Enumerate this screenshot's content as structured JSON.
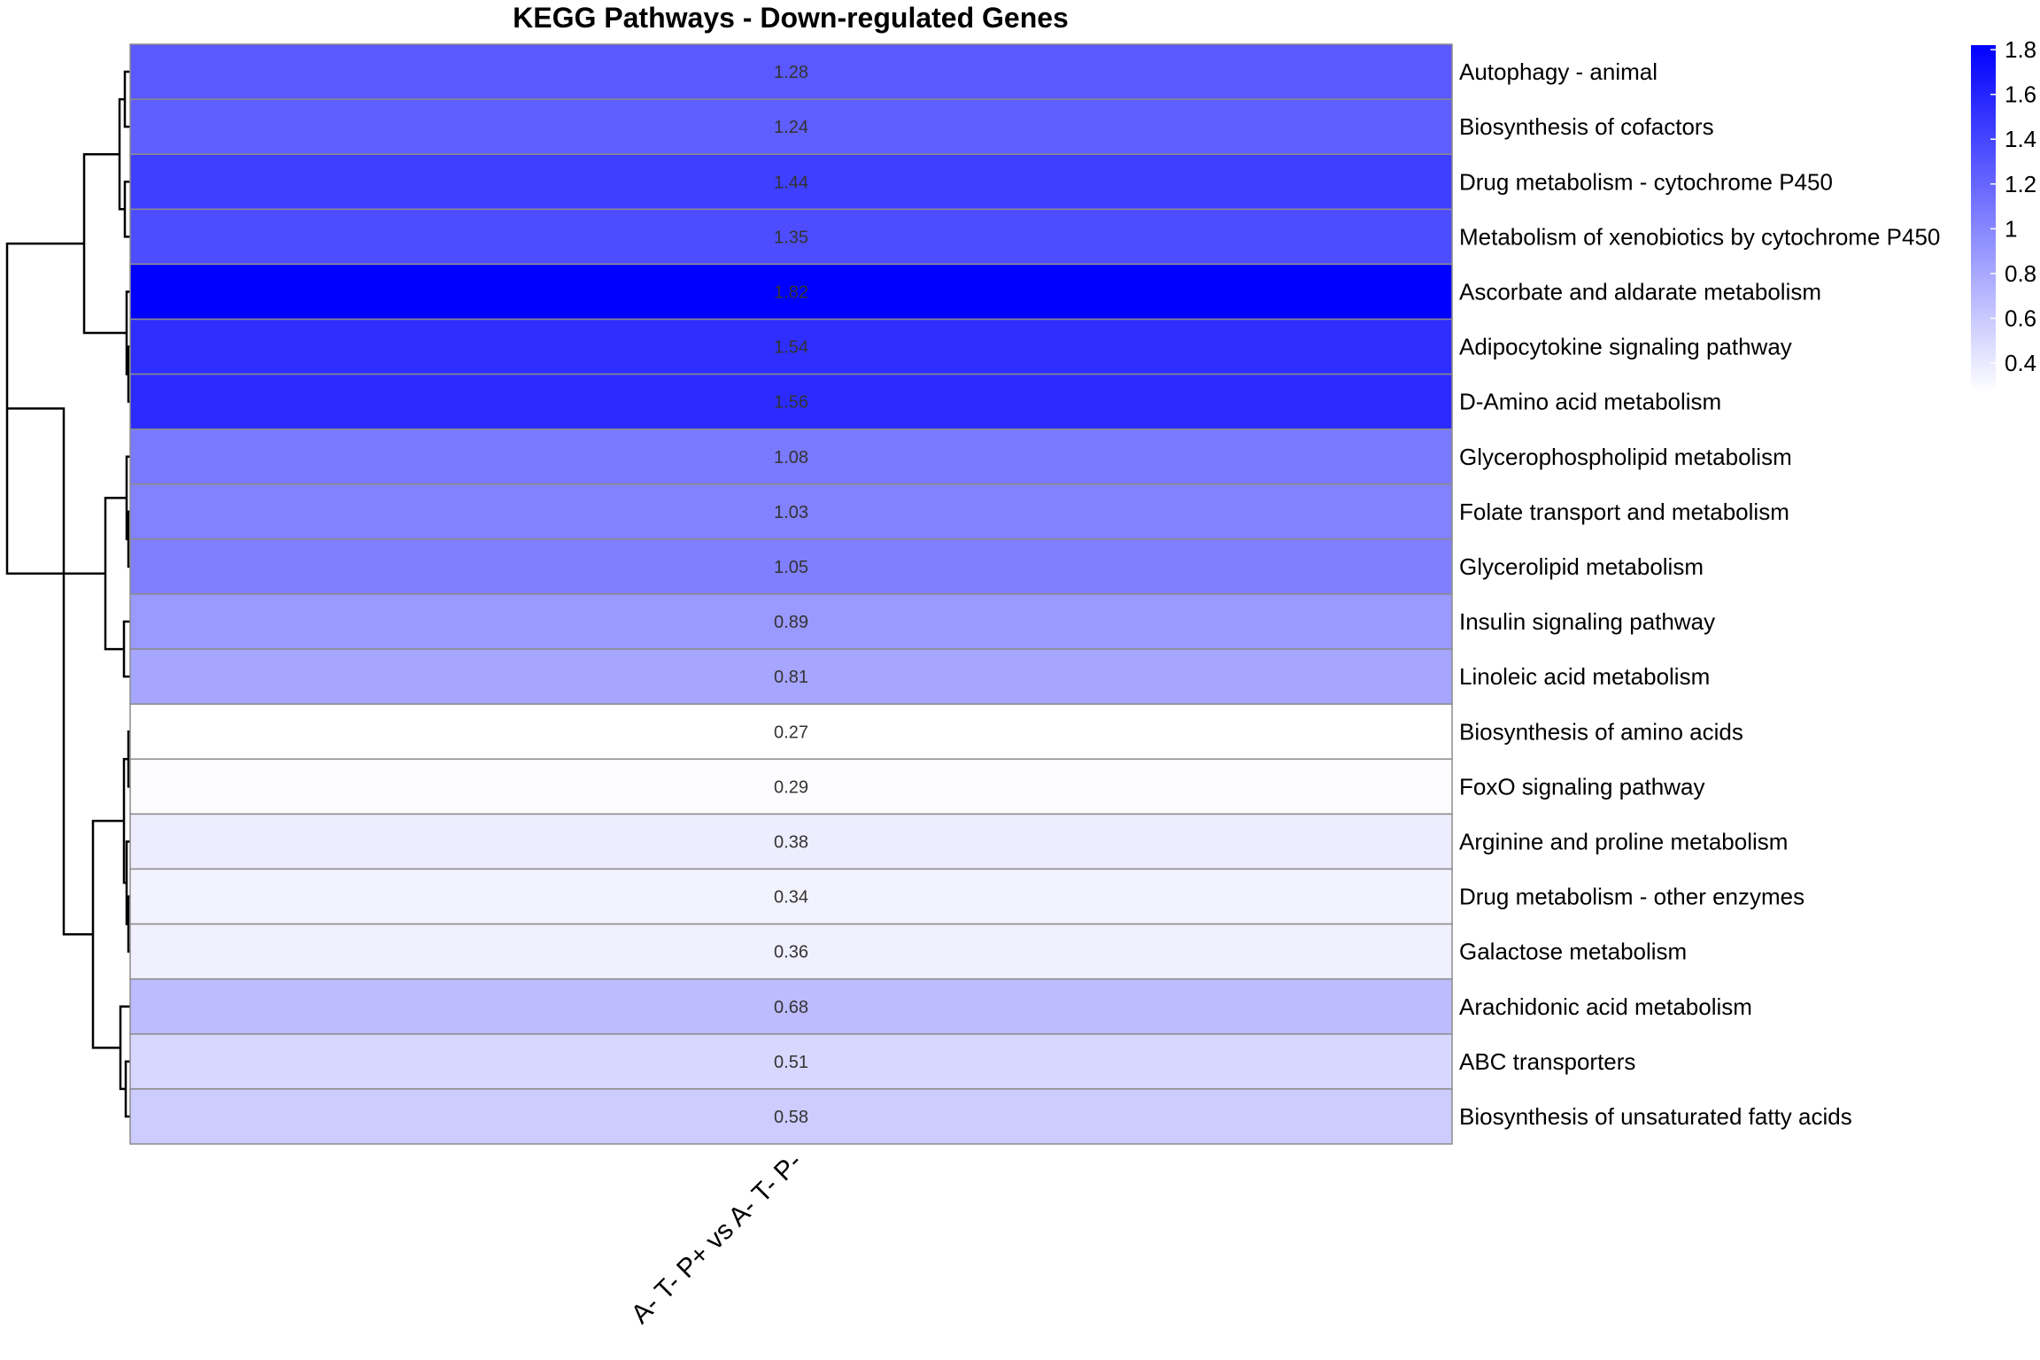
{
  "chart_data": {
    "type": "heatmap",
    "title": "KEGG Pathways - Down-regulated Genes",
    "columns": [
      "A- T- P+ vs A- T- P-"
    ],
    "rows": [
      "Autophagy - animal",
      "Biosynthesis of cofactors",
      "Drug metabolism - cytochrome P450",
      "Metabolism of xenobiotics by cytochrome P450",
      "Ascorbate and aldarate metabolism",
      "Adipocytokine signaling pathway",
      "D-Amino acid metabolism",
      "Glycerophospholipid metabolism",
      "Folate transport and metabolism",
      "Glycerolipid metabolism",
      "Insulin signaling pathway",
      "Linoleic acid metabolism",
      "Biosynthesis of amino acids",
      "FoxO signaling pathway",
      "Arginine and proline metabolism",
      "Drug metabolism - other enzymes",
      "Galactose metabolism",
      "Arachidonic acid metabolism",
      "ABC transporters",
      "Biosynthesis of unsaturated fatty acids"
    ],
    "values": [
      1.28,
      1.24,
      1.44,
      1.35,
      1.82,
      1.54,
      1.56,
      1.08,
      1.03,
      1.05,
      0.89,
      0.81,
      0.27,
      0.29,
      0.38,
      0.34,
      0.36,
      0.68,
      0.51,
      0.58
    ],
    "value_labels": [
      "1.28",
      "1.24",
      "1.44",
      "1.35",
      "1.82",
      "1.54",
      "1.56",
      "1.08",
      "1.03",
      "1.05",
      "0.89",
      "0.81",
      "0.27",
      "0.29",
      "0.38",
      "0.34",
      "0.36",
      "0.68",
      "0.51",
      "0.58"
    ],
    "color_scale": {
      "low": "#ffffff",
      "high": "#0000ff",
      "min": 0.27,
      "max": 1.82
    },
    "legend": {
      "ticks": [
        "1.8",
        "1.6",
        "1.4",
        "1.2",
        "1",
        "0.8",
        "0.6",
        "0.4"
      ],
      "tick_values": [
        1.8,
        1.6,
        1.4,
        1.2,
        1.0,
        0.8,
        0.6,
        0.4
      ],
      "position": "top-right"
    },
    "row_dendrogram": true
  }
}
